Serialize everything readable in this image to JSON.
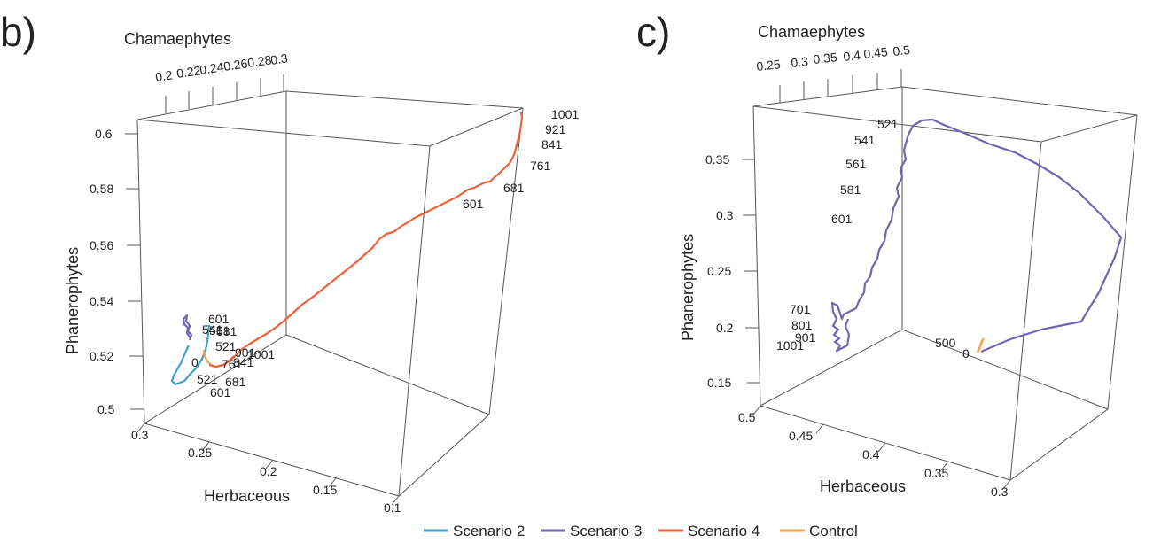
{
  "panels": [
    {
      "letter": "b)",
      "top_axis_label": "Chamaephytes",
      "left_axis_label": "Phanerophytes",
      "bottom_axis_label": "Herbaceous",
      "top_ticks": [
        "0.2",
        "0.22",
        "0.24",
        "0.26",
        "0.28",
        "0.3"
      ],
      "left_ticks": [
        "0.6",
        "0.58",
        "0.56",
        "0.54",
        "0.52",
        "0.5"
      ],
      "bottom_ticks": [
        "0.3",
        "0.25",
        "0.2",
        "0.15",
        "0.1"
      ],
      "point_labels": {
        "scenario4": [
          "1001",
          "921",
          "841",
          "761",
          "681",
          "601"
        ],
        "cluster": [
          "601",
          "541",
          "561",
          "581",
          "521",
          "0",
          "901",
          "1001",
          "761",
          "841",
          "681",
          "521",
          "601"
        ]
      }
    },
    {
      "letter": "c)",
      "top_axis_label": "Chamaephytes",
      "left_axis_label": "Phanerophytes",
      "bottom_axis_label": "Herbaceous",
      "top_ticks": [
        "0.25",
        "0.3",
        "0.35",
        "0.4",
        "0.45",
        "0.5"
      ],
      "left_ticks": [
        "0.35",
        "0.3",
        "0.25",
        "0.2",
        "0.15"
      ],
      "bottom_ticks": [
        "0.5",
        "0.45",
        "0.4",
        "0.35",
        "0.3"
      ],
      "point_labels": {
        "scenario3": [
          "521",
          "541",
          "561",
          "581",
          "601",
          "701",
          "801",
          "901",
          "1001"
        ],
        "control": [
          "500",
          "0"
        ]
      }
    }
  ],
  "legend": [
    {
      "name": "Scenario 2",
      "color": "#3f9fd0"
    },
    {
      "name": "Scenario 3",
      "color": "#7265b3"
    },
    {
      "name": "Scenario 4",
      "color": "#f0603a"
    },
    {
      "name": "Control",
      "color": "#f7a24a"
    }
  ],
  "chart_data": [
    {
      "type": "line",
      "projection": "3d",
      "axes": {
        "x": {
          "label": "Herbaceous",
          "lim": [
            0.3,
            0.1
          ]
        },
        "y": {
          "label": "Chamaephytes",
          "lim": [
            0.2,
            0.3
          ]
        },
        "z": {
          "label": "Phanerophytes",
          "lim": [
            0.5,
            0.6
          ]
        }
      },
      "series": [
        {
          "name": "Scenario 4",
          "color": "#f0603a",
          "points": [
            [
              0.28,
              0.225,
              0.505
            ],
            [
              0.26,
              0.23,
              0.51
            ],
            [
              0.23,
              0.24,
              0.525
            ],
            [
              0.2,
              0.25,
              0.54
            ],
            [
              0.17,
              0.26,
              0.56
            ],
            [
              0.14,
              0.27,
              0.575
            ],
            [
              0.12,
              0.28,
              0.585
            ],
            [
              0.105,
              0.29,
              0.6
            ]
          ]
        },
        {
          "name": "Scenario 2",
          "color": "#3f9fd0",
          "points": [
            [
              0.3,
              0.22,
              0.497
            ],
            [
              0.29,
              0.222,
              0.5
            ],
            [
              0.27,
              0.225,
              0.505
            ],
            [
              0.26,
              0.228,
              0.51
            ]
          ]
        },
        {
          "name": "Scenario 3",
          "color": "#7265b3",
          "points": [
            [
              0.29,
              0.225,
              0.515
            ],
            [
              0.29,
              0.226,
              0.52
            ],
            [
              0.29,
              0.225,
              0.523
            ]
          ]
        },
        {
          "name": "Control",
          "color": "#f7a24a",
          "points": [
            [
              0.285,
              0.223,
              0.51
            ],
            [
              0.28,
              0.223,
              0.508
            ]
          ]
        }
      ]
    },
    {
      "type": "line",
      "projection": "3d",
      "axes": {
        "x": {
          "label": "Herbaceous",
          "lim": [
            0.5,
            0.3
          ]
        },
        "y": {
          "label": "Chamaephytes",
          "lim": [
            0.25,
            0.5
          ]
        },
        "z": {
          "label": "Phanerophytes",
          "lim": [
            0.15,
            0.35
          ]
        }
      },
      "series": [
        {
          "name": "Scenario 3",
          "color": "#7265b3",
          "points": [
            [
              0.46,
              0.27,
              0.19
            ],
            [
              0.46,
              0.29,
              0.22
            ],
            [
              0.45,
              0.31,
              0.26
            ],
            [
              0.45,
              0.34,
              0.3
            ],
            [
              0.44,
              0.38,
              0.34
            ],
            [
              0.42,
              0.43,
              0.36
            ],
            [
              0.38,
              0.48,
              0.33
            ],
            [
              0.33,
              0.5,
              0.27
            ],
            [
              0.31,
              0.47,
              0.21
            ],
            [
              0.3,
              0.42,
              0.175
            ]
          ]
        },
        {
          "name": "Control",
          "color": "#f7a24a",
          "points": [
            [
              0.3,
              0.42,
              0.175
            ],
            [
              0.3,
              0.43,
              0.18
            ]
          ]
        }
      ]
    }
  ]
}
